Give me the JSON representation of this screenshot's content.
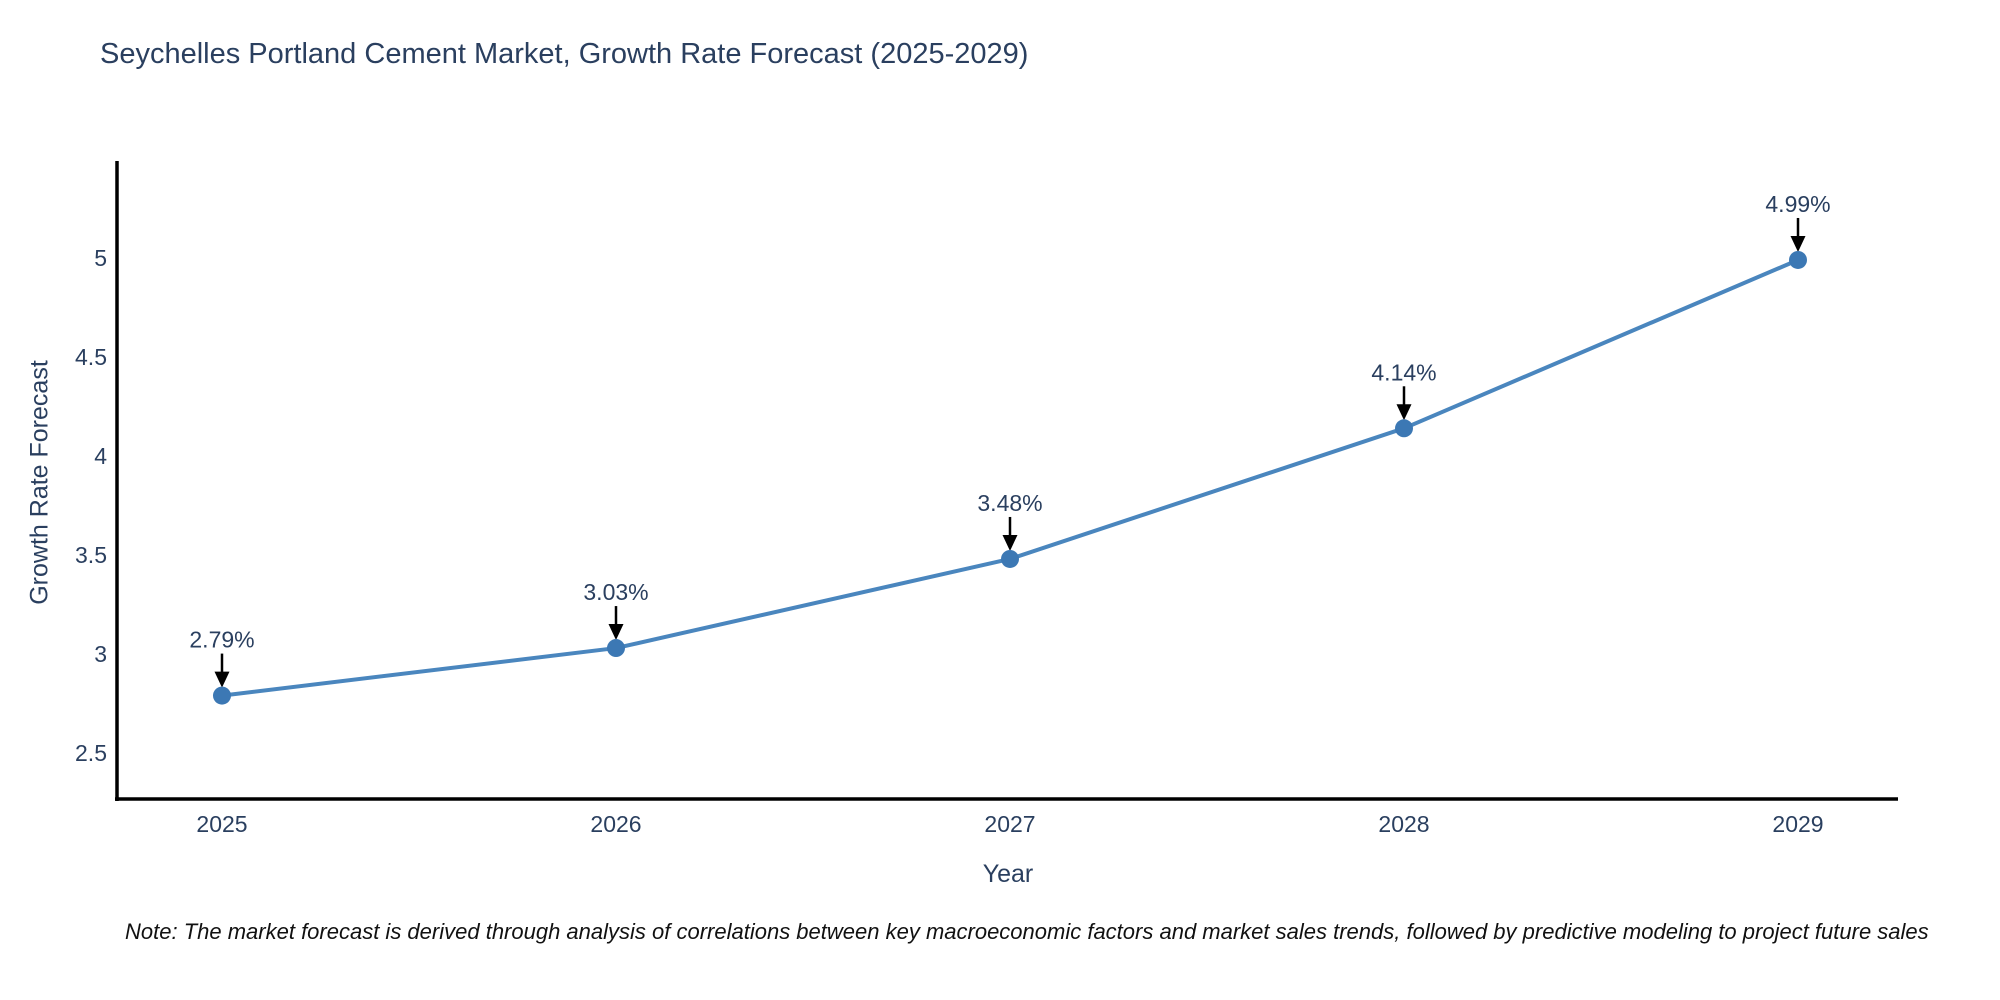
{
  "note": "Note: The market forecast is derived through analysis of correlations between key macroeconomic factors and market sales trends, followed by predictive modeling to project future sales",
  "chart_data": {
    "type": "line",
    "title": "Seychelles Portland Cement Market, Growth Rate Forecast (2025-2029)",
    "xlabel": "Year",
    "ylabel": "Growth Rate Forecast",
    "categories": [
      "2025",
      "2026",
      "2027",
      "2028",
      "2029"
    ],
    "series": [
      {
        "name": "Growth Rate Forecast",
        "values": [
          2.79,
          3.03,
          3.48,
          4.14,
          4.99
        ],
        "point_labels": [
          "2.79%",
          "3.03%",
          "3.48%",
          "4.14%",
          "4.99%"
        ]
      }
    ],
    "yticks": [
      2.5,
      3,
      3.5,
      4,
      4.5,
      5
    ],
    "ylim": [
      2.26,
      5.48
    ],
    "grid": false,
    "legend": false,
    "annotations_have_arrows": true,
    "colors": {
      "line": "#4a86be",
      "marker": "#3c78b4",
      "text": "#2a3f5f",
      "axis": "#000000",
      "arrow": "#000000",
      "background": "#ffffff"
    }
  }
}
